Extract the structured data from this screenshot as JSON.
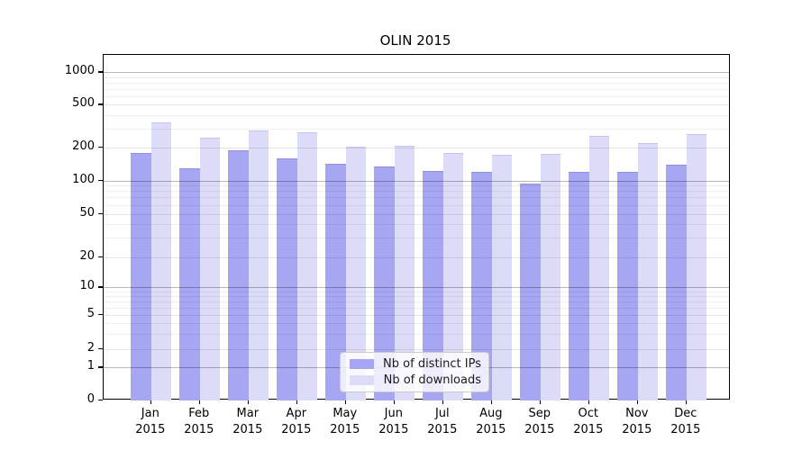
{
  "title": "OLIN 2015",
  "colors": {
    "distinct_ips": "#a6a6f3",
    "downloads": "#dcdcf9",
    "axis": "#000000"
  },
  "y_axis": {
    "scale": "symlog",
    "tick_labels": [
      "1000",
      "500",
      "200",
      "100",
      "50",
      "20",
      "10",
      "5",
      "2",
      "1",
      "0"
    ]
  },
  "legend": {
    "items": [
      {
        "label": "Nb of distinct IPs",
        "color": "#a6a6f3"
      },
      {
        "label": "Nb of downloads",
        "color": "#dcdcf9"
      }
    ]
  },
  "chart_data": {
    "type": "bar",
    "title": "OLIN 2015",
    "categories": [
      "Jan 2015",
      "Feb 2015",
      "Mar 2015",
      "Apr 2015",
      "May 2015",
      "Jun 2015",
      "Jul 2015",
      "Aug 2015",
      "Sep 2015",
      "Oct 2015",
      "Nov 2015",
      "Dec 2015"
    ],
    "series": [
      {
        "name": "Nb of distinct IPs",
        "color": "#a6a6f3",
        "values": [
          181,
          130,
          191,
          161,
          143,
          135,
          123,
          121,
          94,
          121,
          120,
          140
        ]
      },
      {
        "name": "Nb of downloads",
        "color": "#dcdcf9",
        "values": [
          348,
          250,
          293,
          280,
          207,
          209,
          179,
          174,
          176,
          258,
          221,
          270
        ]
      }
    ],
    "xlabel": "",
    "ylabel": "",
    "yscale": "symlog",
    "yticks": [
      0,
      1,
      2,
      5,
      10,
      20,
      50,
      100,
      200,
      500,
      1000
    ],
    "ylim": [
      0,
      1450
    ],
    "grid": true,
    "legend_position": "lower center"
  }
}
